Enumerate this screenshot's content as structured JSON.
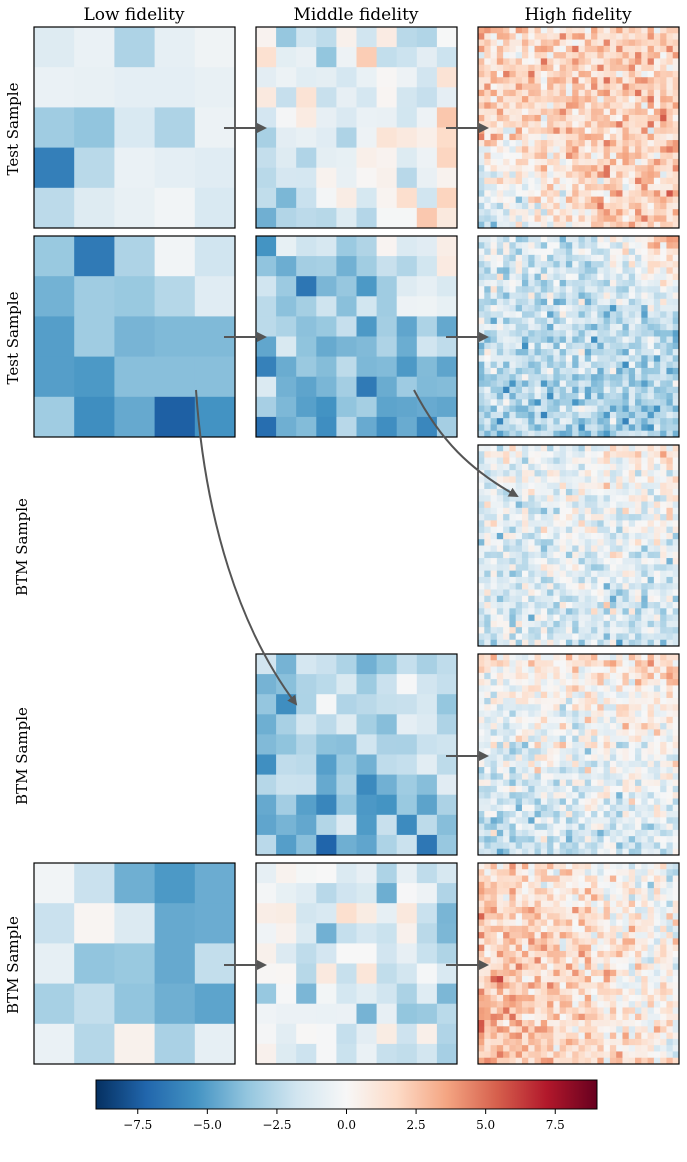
{
  "columns": [
    {
      "key": "low",
      "title": "Low fidelity",
      "resolution": 5
    },
    {
      "key": "mid",
      "title": "Middle fidelity",
      "resolution": 10
    },
    {
      "key": "high",
      "title": "High fidelity",
      "resolution": 32
    }
  ],
  "rows": [
    {
      "label": "Test Sample",
      "panels": [
        "low",
        "mid",
        "high"
      ]
    },
    {
      "label": "Test Sample",
      "panels": [
        "low",
        "mid",
        "high"
      ]
    },
    {
      "label": "BTM Sample",
      "panels": [
        "high"
      ]
    },
    {
      "label": "BTM Sample",
      "panels": [
        "mid",
        "high"
      ]
    },
    {
      "label": "BTM Sample",
      "panels": [
        "low",
        "mid",
        "high"
      ]
    }
  ],
  "colorbar": {
    "colormap": "RdBu_r",
    "vmin": -9,
    "vmax": 9,
    "ticks": [
      -7.5,
      -5.0,
      -2.5,
      0.0,
      2.5,
      5.0,
      7.5
    ],
    "tick_labels": [
      "−7.5",
      "−5.0",
      "−2.5",
      "0.0",
      "2.5",
      "5.0",
      "7.5"
    ]
  },
  "colors": {
    "arrow": "#555555",
    "frame": "#000000"
  },
  "panel_data": {
    "r0_low": [
      [
        -1.2,
        -0.6,
        -2.8,
        -0.8,
        -0.4
      ],
      [
        -0.6,
        -0.7,
        -0.9,
        -0.9,
        -0.7
      ],
      [
        -3.2,
        -3.6,
        -1.4,
        -2.8,
        -0.5
      ],
      [
        -6.2,
        -2.5,
        -0.6,
        -0.9,
        -1.1
      ],
      [
        -2.4,
        -1.2,
        -0.7,
        -0.3,
        -1.4
      ]
    ],
    "r1_low": [
      [
        -3.4,
        -6.4,
        -2.8,
        -0.3,
        -1.8
      ],
      [
        -4.3,
        -3.2,
        -3.4,
        -2.6,
        -1.1
      ],
      [
        -5.0,
        -3.2,
        -4.2,
        -4.0,
        -4.0
      ],
      [
        -5.0,
        -5.2,
        -3.8,
        -3.8,
        -3.8
      ],
      [
        -3.2,
        -5.6,
        -4.6,
        -7.4,
        -5.4
      ]
    ],
    "r4_low": [
      [
        -0.3,
        -2.0,
        -4.4,
        -5.2,
        -4.5
      ],
      [
        -2.0,
        0.2,
        -1.3,
        -4.6,
        -4.5
      ],
      [
        -0.8,
        -3.6,
        -3.4,
        -4.6,
        -2.2
      ],
      [
        -3.0,
        -2.2,
        -3.6,
        -4.4,
        -4.8
      ],
      [
        -0.6,
        -2.6,
        0.4,
        -2.9,
        -0.8
      ]
    ]
  }
}
